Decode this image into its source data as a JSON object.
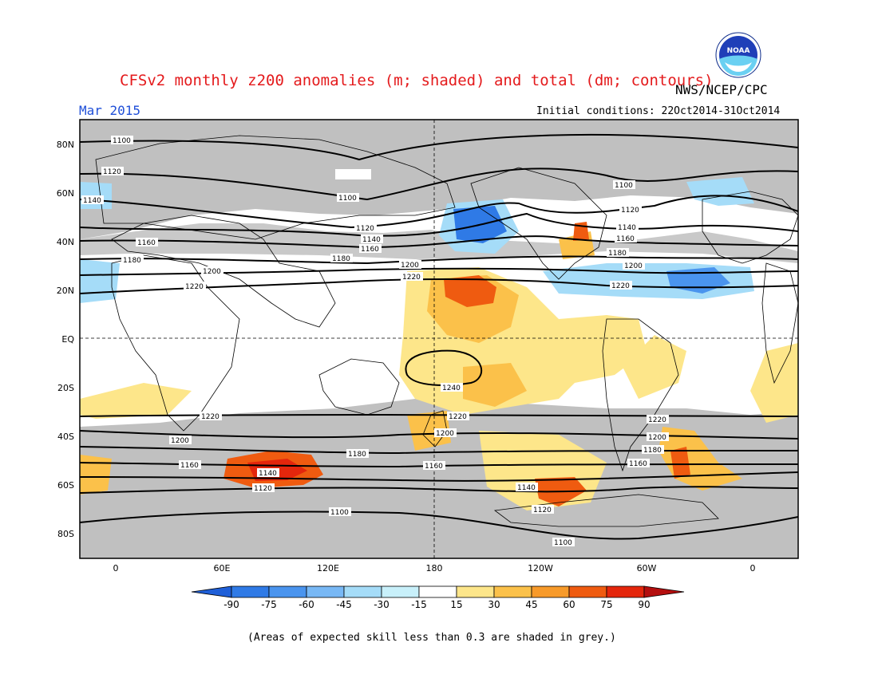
{
  "header": {
    "title": "CFSv2 monthly z200 anomalies (m; shaded) and total (dm; contours)",
    "agency": "NWS/NCEP/CPC",
    "valid_month": "Mar 2015",
    "initial_conditions": "Initial conditions: 22Oct2014-31Oct2014",
    "logo_text": "NOAA"
  },
  "map": {
    "lat_labels": [
      "80N",
      "60N",
      "40N",
      "20N",
      "EQ",
      "20S",
      "40S",
      "60S",
      "80S"
    ],
    "lon_labels": [
      "0",
      "60E",
      "120E",
      "180",
      "120W",
      "60W",
      "0"
    ],
    "contour_labels": [
      "1100",
      "1120",
      "1140",
      "1160",
      "1180",
      "1200",
      "1220",
      "1240"
    ],
    "colors": {
      "skill_mask": "#c0c0c0",
      "ocean_land_bg": "#ffffff",
      "coastline": "#000000"
    }
  },
  "colorbar": {
    "ticks": [
      "-90",
      "-75",
      "-60",
      "-45",
      "-30",
      "-15",
      "15",
      "30",
      "45",
      "60",
      "75",
      "90"
    ],
    "colors": [
      "#1f5fd8",
      "#2f7ae6",
      "#4a94ee",
      "#78b8f5",
      "#a5dcf8",
      "#c8f0fa",
      "#ffffff",
      "#fde68a",
      "#fbc14a",
      "#f79a2a",
      "#ef5b10",
      "#e4260c",
      "#b40f0f"
    ]
  },
  "footnote": "(Areas of expected skill less than 0.3 are shaded in grey.)"
}
